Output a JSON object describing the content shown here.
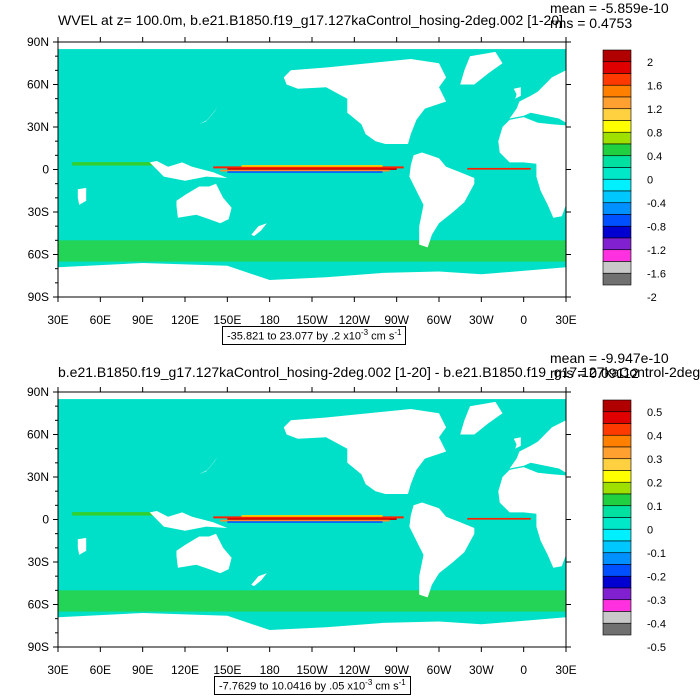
{
  "colors": {
    "ocean": "#00e0c8",
    "land": "#ffffff",
    "seaice": "#ffffff",
    "pos_band": [
      "#c00000",
      "#ff2000",
      "#ff8c28",
      "#ffd000",
      "#30d030"
    ],
    "neg_band": [
      "#0060ff",
      "#0000c0"
    ]
  },
  "x_ticks": [
    "30E",
    "60E",
    "90E",
    "120E",
    "150E",
    "180",
    "150W",
    "120W",
    "90W",
    "60W",
    "30W",
    "0",
    "30E"
  ],
  "y_ticks": [
    "90N",
    "60N",
    "30N",
    "0",
    "30S",
    "60S",
    "90S"
  ],
  "panels": [
    {
      "title": "WVEL at z= 100.0m, b.e21.B1850.f19_g17.127kaControl_hosing-2deg.002 [1-20]",
      "mean": "mean = -5.859e-10",
      "rms": "rms = 0.4753",
      "range": "-35.821 to 23.077 by .2 x10",
      "range_exp": "-3",
      "range_units": " cm s",
      "range_units_exp": "-1",
      "colorbar": {
        "labels": [
          "2",
          "1.6",
          "1.2",
          "0.8",
          "0.4",
          "0",
          "-0.4",
          "-0.8",
          "-1.2",
          "-1.6",
          "-2"
        ],
        "colors": [
          "#b00000",
          "#e00000",
          "#ff3a00",
          "#ff8000",
          "#ffa030",
          "#ffd040",
          "#ffff00",
          "#a0e000",
          "#20d040",
          "#00e0a0",
          "#00e8c8",
          "#00f0ff",
          "#00c8ff",
          "#0090ff",
          "#0050ff",
          "#0000d0",
          "#8020d0",
          "#ff30e0",
          "#c8c8c8",
          "#707070"
        ]
      }
    },
    {
      "title": "b.e21.B1850.f19_g17.127kaControl_hosing-2deg.002 [1-20] - b.e21.B1850.f19_g17.127kaControl-2deg.",
      "mean": "mean = -9.947e-10",
      "rms": "rms = 0.09112",
      "range": "-7.7629 to 10.0416 by .05 x10",
      "range_exp": "-3",
      "range_units": " cm s",
      "range_units_exp": "-1",
      "colorbar": {
        "labels": [
          "0.5",
          "0.4",
          "0.3",
          "0.2",
          "0.1",
          "0",
          "-0.1",
          "-0.2",
          "-0.3",
          "-0.4",
          "-0.5"
        ],
        "colors": [
          "#b00000",
          "#e00000",
          "#ff3a00",
          "#ff8000",
          "#ffa030",
          "#ffd040",
          "#ffff00",
          "#a0e000",
          "#20d040",
          "#00e0a0",
          "#00e8c8",
          "#00f0ff",
          "#00c8ff",
          "#0090ff",
          "#0050ff",
          "#0000d0",
          "#8020d0",
          "#ff30e0",
          "#c8c8c8",
          "#707070"
        ]
      }
    }
  ]
}
